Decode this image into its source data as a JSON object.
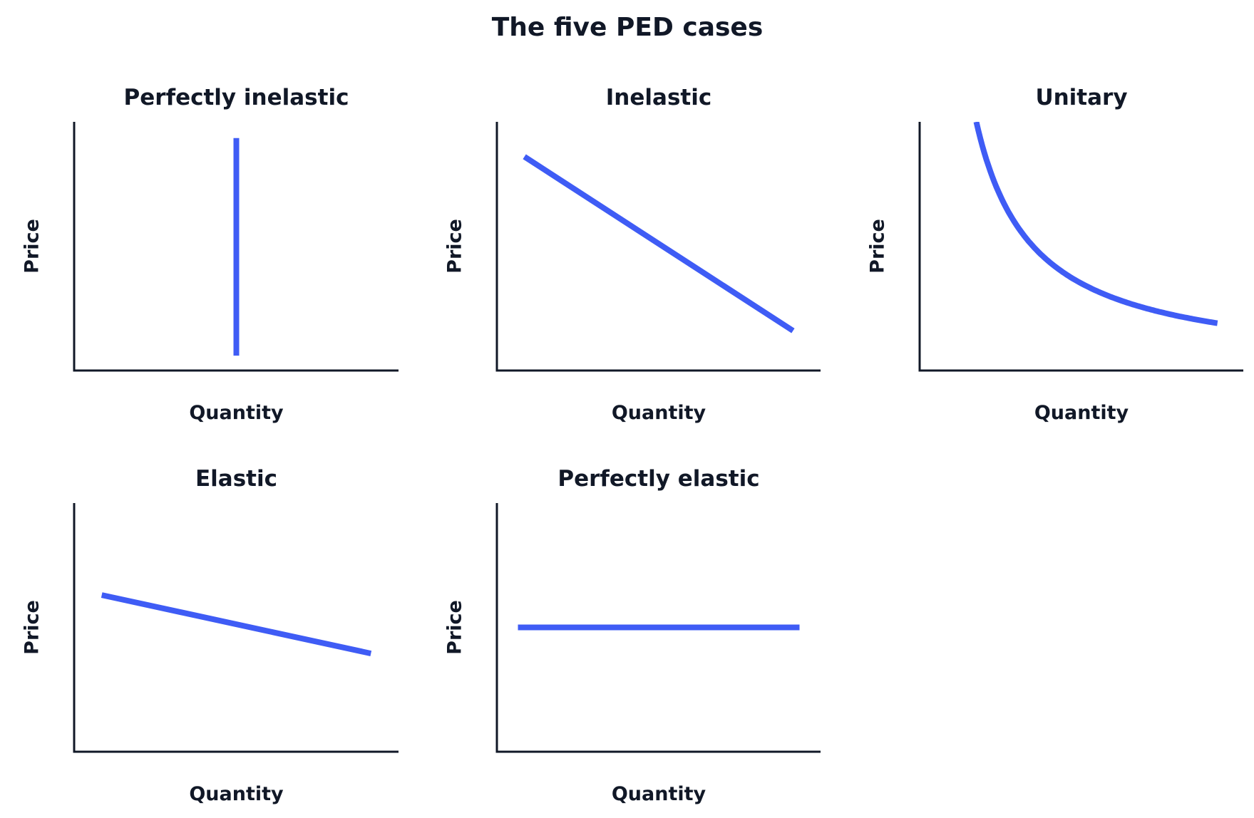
{
  "figure_title": "The five PED cases",
  "colors": {
    "curve": "#3f5cf5",
    "axis": "#111827",
    "text": "#111827"
  },
  "chart_data": [
    {
      "type": "line",
      "title": "Perfectly inelastic",
      "xlabel": "Quantity",
      "ylabel": "Price",
      "xlim": [
        0,
        10
      ],
      "ylim": [
        0,
        10
      ],
      "grid": false,
      "ticks": false,
      "series": [
        {
          "x": [
            5,
            5
          ],
          "y": [
            9.35,
            0.6
          ]
        }
      ]
    },
    {
      "type": "line",
      "title": "Inelastic",
      "xlabel": "Quantity",
      "ylabel": "Price",
      "xlim": [
        0,
        10
      ],
      "ylim": [
        0,
        10
      ],
      "grid": false,
      "ticks": false,
      "series": [
        {
          "x": [
            0.85,
            9.15
          ],
          "y": [
            8.6,
            1.6
          ]
        }
      ]
    },
    {
      "type": "line",
      "title": "Unitary",
      "xlabel": "Quantity",
      "ylabel": "Price",
      "xlim": [
        0,
        10
      ],
      "ylim": [
        0,
        10
      ],
      "grid": false,
      "ticks": false,
      "series": [
        {
          "x": [
            1.75,
            2,
            2.5,
            3,
            3.5,
            4,
            5,
            6,
            7,
            8,
            9.2
          ],
          "y": [
            10,
            8.75,
            7,
            5.83,
            5,
            4.38,
            3.5,
            2.92,
            2.5,
            2.19,
            2.5
          ]
        }
      ]
    },
    {
      "type": "line",
      "title": "Elastic",
      "xlabel": "Quantity",
      "ylabel": "Price",
      "xlim": [
        0,
        10
      ],
      "ylim": [
        0,
        10
      ],
      "grid": false,
      "ticks": false,
      "series": [
        {
          "x": [
            0.85,
            9.15
          ],
          "y": [
            6.3,
            3.95
          ]
        }
      ]
    },
    {
      "type": "line",
      "title": "Perfectly elastic",
      "xlabel": "Quantity",
      "ylabel": "Price",
      "xlim": [
        0,
        10
      ],
      "ylim": [
        0,
        10
      ],
      "grid": false,
      "ticks": false,
      "series": [
        {
          "x": [
            0.65,
            9.35
          ],
          "y": [
            5,
            5
          ]
        }
      ]
    }
  ]
}
